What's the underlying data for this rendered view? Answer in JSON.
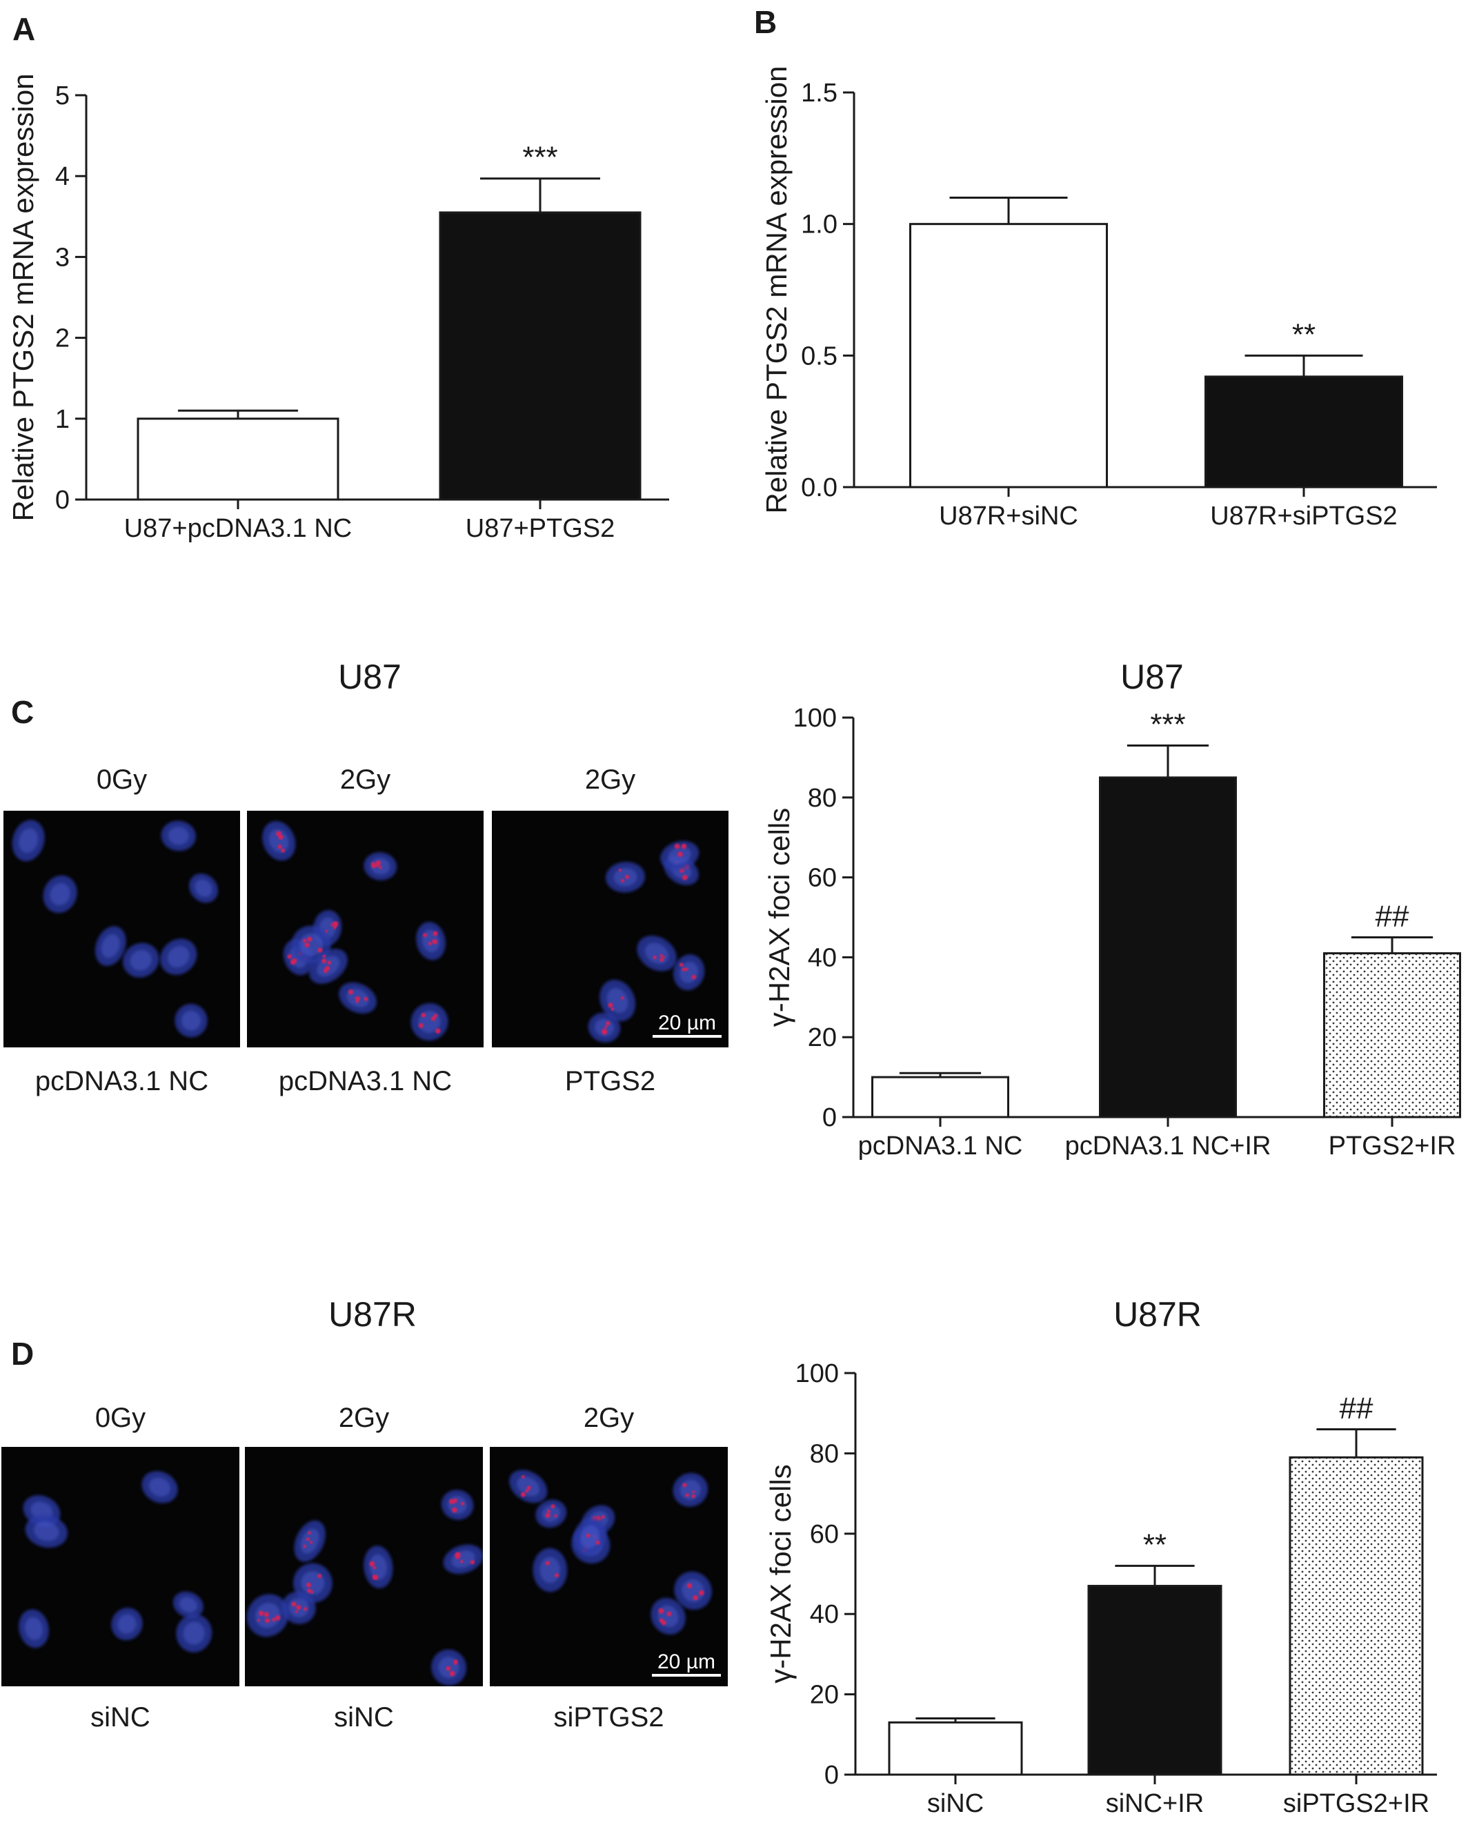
{
  "figure": {
    "panels": [
      {
        "letter": "A",
        "chart_data": {
          "type": "bar",
          "categories": [
            "U87+pcDNA3.1 NC",
            "U87+PTGS2"
          ],
          "values": [
            1.0,
            3.55
          ],
          "errors": [
            0.1,
            0.42
          ],
          "significance": [
            "",
            "***"
          ],
          "fills": [
            "white",
            "black"
          ],
          "title": "",
          "xlabel": "",
          "ylabel": "Relative PTGS2 mRNA expression",
          "ylim": [
            0,
            5
          ],
          "yticks": [
            "0",
            "1",
            "2",
            "3",
            "4",
            "5"
          ]
        }
      },
      {
        "letter": "B",
        "chart_data": {
          "type": "bar",
          "categories": [
            "U87R+siNC",
            "U87R+siPTGS2"
          ],
          "values": [
            1.0,
            0.42
          ],
          "errors": [
            0.1,
            0.08
          ],
          "significance": [
            "",
            "**"
          ],
          "fills": [
            "white",
            "black"
          ],
          "title": "",
          "xlabel": "",
          "ylabel": "Relative PTGS2 mRNA expression",
          "ylim": [
            0,
            1.5
          ],
          "yticks": [
            "0.0",
            "0.5",
            "1.0",
            "1.5"
          ]
        }
      },
      {
        "letter": "C",
        "images": {
          "title": "U87",
          "top_labels": [
            "0Gy",
            "2Gy",
            "2Gy"
          ],
          "bottom_labels": [
            "pcDNA3.1 NC",
            "pcDNA3.1 NC",
            "PTGS2"
          ],
          "scale_bar": "20 µm",
          "nuclei_color": "#2a3aa8",
          "foci_color": "#d0245a"
        },
        "chart_data": {
          "type": "bar",
          "categories": [
            "pcDNA3.1 NC",
            "pcDNA3.1 NC+IR",
            "PTGS2+IR"
          ],
          "values": [
            10,
            85,
            41
          ],
          "errors": [
            1,
            8,
            4
          ],
          "significance": [
            "",
            "***",
            "##"
          ],
          "fills": [
            "white",
            "black",
            "dots"
          ],
          "title": "U87",
          "xlabel": "",
          "ylabel": "γ-H2AX foci cells",
          "ylim": [
            0,
            100
          ],
          "yticks": [
            "0",
            "20",
            "40",
            "60",
            "80",
            "100"
          ]
        }
      },
      {
        "letter": "D",
        "images": {
          "title": "U87R",
          "top_labels": [
            "0Gy",
            "2Gy",
            "2Gy"
          ],
          "bottom_labels": [
            "siNC",
            "siNC",
            "siPTGS2"
          ],
          "scale_bar": "20 µm",
          "nuclei_color": "#2a3aa8",
          "foci_color": "#d0245a"
        },
        "chart_data": {
          "type": "bar",
          "categories": [
            "siNC",
            "siNC+IR",
            "siPTGS2+IR"
          ],
          "values": [
            13,
            47,
            79
          ],
          "errors": [
            1,
            5,
            7
          ],
          "significance": [
            "",
            "**",
            "##"
          ],
          "fills": [
            "white",
            "black",
            "dots"
          ],
          "title": "U87R",
          "xlabel": "",
          "ylabel": "γ-H2AX foci cells",
          "ylim": [
            0,
            100
          ],
          "yticks": [
            "0",
            "20",
            "40",
            "60",
            "80",
            "100"
          ]
        }
      }
    ]
  }
}
